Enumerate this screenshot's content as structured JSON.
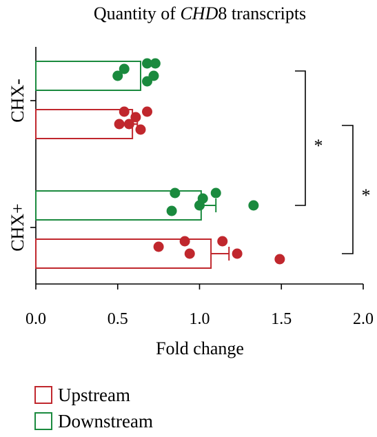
{
  "chart_data": {
    "type": "bar",
    "orientation": "horizontal",
    "title_prefix": "Quantity of ",
    "title_gene": "CHD",
    "title_suffix": "8 transcripts",
    "xlabel": "Fold change",
    "xlim": [
      0,
      2
    ],
    "xticks": [
      "0.0",
      "0.5",
      "1.0",
      "1.5",
      "2.0"
    ],
    "categories": [
      "CHX-",
      "CHX+"
    ],
    "series": [
      {
        "name": "Upstream",
        "color": "#c0272d",
        "values": [
          0.59,
          1.07
        ],
        "error": [
          0.62,
          1.18
        ],
        "points": [
          [
            0.54,
            0.61,
            0.68,
            0.57,
            0.64,
            0.51
          ],
          [
            0.91,
            0.75,
            1.14,
            1.23,
            1.49,
            0.94
          ]
        ]
      },
      {
        "name": "Downstream",
        "color": "#1a8a3e",
        "values": [
          0.64,
          1.01
        ],
        "error": [
          0.64,
          1.1
        ],
        "points": [
          [
            0.73,
            0.54,
            0.68,
            0.5,
            0.68,
            0.72
          ],
          [
            0.85,
            1.02,
            1.1,
            1.33,
            0.83,
            1.0
          ]
        ]
      }
    ],
    "significance": [
      {
        "label": "*",
        "between": "CHX- Downstream vs CHX+ Downstream"
      },
      {
        "label": "*",
        "between": "CHX- Upstream vs CHX+ Upstream"
      }
    ],
    "legend": {
      "placement": "bottom-left",
      "entries": [
        "Upstream",
        "Downstream"
      ]
    }
  }
}
